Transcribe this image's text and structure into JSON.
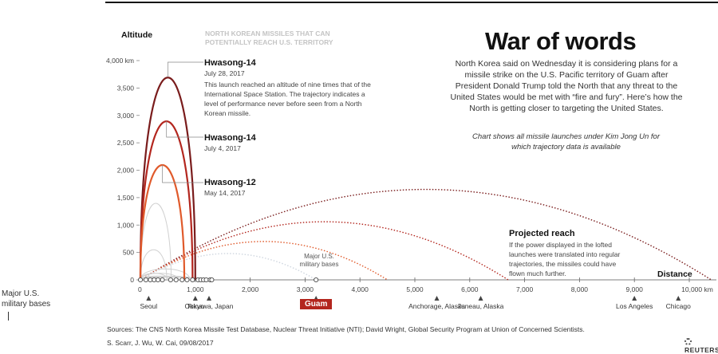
{
  "header": {
    "title": "War of words",
    "intro": "North Korea said on Wednesday it is considering plans for a missile strike on the U.S. Pacific territory of Guam after President Donald Trump told the North that any threat to the United States would be met with “fire and fury”. Here’s how the North is getting closer to targeting the United States.",
    "note": "Chart shows all missile launches under Kim Jong Un for which trajectory data is available",
    "subtitle": "NORTH KOREAN MISSILES THAT CAN POTENTIALLY REACH U.S. TERRITORY"
  },
  "annotations": [
    {
      "name": "Hwasong-14",
      "date": "July 28, 2017",
      "desc": "This launch reached an altitude of nine times that of the International Space Station. The trajectory indicates a level of performance never before seen from a North Korean missile."
    },
    {
      "name": "Hwasong-14",
      "date": "July 4, 2017"
    },
    {
      "name": "Hwasong-12",
      "date": "May 14, 2017"
    }
  ],
  "reach": {
    "title": "Projected reach",
    "desc": "If the power displayed in the lofted launches were translated into regular trajectories, the missiles could have flown much further."
  },
  "bases_small": "Major U.S. military bases",
  "bases_left": "Major U.S. military bases",
  "footer": {
    "sources": "Sources: The CNS North Korea Missile Test Database, Nuclear Threat Initiative (NTI); David Wright, Global Security Program at Union of Concerned Scientists.",
    "credit": "S. Scarr, J. Wu, W. Cai,  09/08/2017",
    "brand": "REUTERS"
  },
  "colors": {
    "hw14_jul28": "#7a1c1c",
    "hw14_jul4": "#b3261e",
    "hw12": "#e05a2b",
    "other_launch": "#d0d0d0",
    "guam": "#b3261e"
  },
  "chart_data": {
    "type": "line",
    "title": "War of words",
    "xlabel": "Distance",
    "ylabel": "Altitude",
    "xlim": [
      0,
      10000
    ],
    "ylim": [
      0,
      4000
    ],
    "x_ticks": [
      {
        "value": 0,
        "label": "0"
      },
      {
        "value": 1000,
        "label": "1,000"
      },
      {
        "value": 2000,
        "label": "2,000"
      },
      {
        "value": 3000,
        "label": "3,000"
      },
      {
        "value": 4000,
        "label": "4,000"
      },
      {
        "value": 5000,
        "label": "5,000"
      },
      {
        "value": 6000,
        "label": "6,000"
      },
      {
        "value": 7000,
        "label": "7,000"
      },
      {
        "value": 8000,
        "label": "8,000"
      },
      {
        "value": 9000,
        "label": "9,000"
      },
      {
        "value": 10000,
        "label": "10,000 km"
      }
    ],
    "y_ticks": [
      {
        "value": 0,
        "label": "0"
      },
      {
        "value": 500,
        "label": "500"
      },
      {
        "value": 1000,
        "label": "1,000"
      },
      {
        "value": 1500,
        "label": "1,500"
      },
      {
        "value": 2000,
        "label": "2,000"
      },
      {
        "value": 2500,
        "label": "2,500"
      },
      {
        "value": 3000,
        "label": "3,000"
      },
      {
        "value": 3500,
        "label": "3,500"
      },
      {
        "value": 4000,
        "label": "4,000 km"
      }
    ],
    "launches": [
      {
        "name": "Hwasong-14",
        "date": "July 28, 2017",
        "range_km": 1000,
        "apogee_km": 3700,
        "color": "#7a1c1c"
      },
      {
        "name": "Hwasong-14",
        "date": "July 4, 2017",
        "range_km": 950,
        "apogee_km": 2900,
        "color": "#b3261e"
      },
      {
        "name": "Hwasong-12",
        "date": "May 14, 2017",
        "range_km": 800,
        "apogee_km": 2100,
        "color": "#e05a2b"
      }
    ],
    "other_launches": [
      {
        "range_km": 560,
        "apogee_km": 1400
      },
      {
        "range_km": 480,
        "apogee_km": 550
      },
      {
        "range_km": 900,
        "apogee_km": 200
      },
      {
        "range_km": 500,
        "apogee_km": 120
      },
      {
        "range_km": 700,
        "apogee_km": 120
      },
      {
        "range_km": 300,
        "apogee_km": 60
      },
      {
        "range_km": 1000,
        "apogee_km": 70
      },
      {
        "range_km": 1100,
        "apogee_km": 60
      },
      {
        "range_km": 1250,
        "apogee_km": 50
      },
      {
        "range_km": 600,
        "apogee_km": 70
      }
    ],
    "projected_reach": [
      {
        "range_km": 10400,
        "peak_km": 1650,
        "color": "#7a1c1c"
      },
      {
        "range_km": 6700,
        "peak_km": 1060,
        "color": "#b3261e"
      },
      {
        "range_km": 4500,
        "peak_km": 700,
        "color": "#e05a2b"
      },
      {
        "range_km": 3200,
        "peak_km": 480,
        "color": "#cfd6df"
      }
    ],
    "locations": [
      {
        "name": "Seoul",
        "distance_km": 150
      },
      {
        "name": "Tokyo",
        "distance_km": 1000
      },
      {
        "name": "Okinawa, Japan",
        "distance_km": 1250
      },
      {
        "name": "Guam",
        "distance_km": 3200,
        "highlight": true
      },
      {
        "name": "Anchorage, Alaska",
        "distance_km": 5400
      },
      {
        "name": "Juneau, Alaska",
        "distance_km": 6200
      },
      {
        "name": "Los Angeles",
        "distance_km": 9000
      },
      {
        "name": "Chicago",
        "distance_km": 9800
      }
    ],
    "base_markers_km": [
      0,
      100,
      180,
      250,
      320,
      400,
      550,
      650,
      760,
      850,
      950,
      1050,
      1100,
      1150,
      1200,
      1270,
      1300,
      3200
    ],
    "grid": false,
    "legend": "none"
  }
}
